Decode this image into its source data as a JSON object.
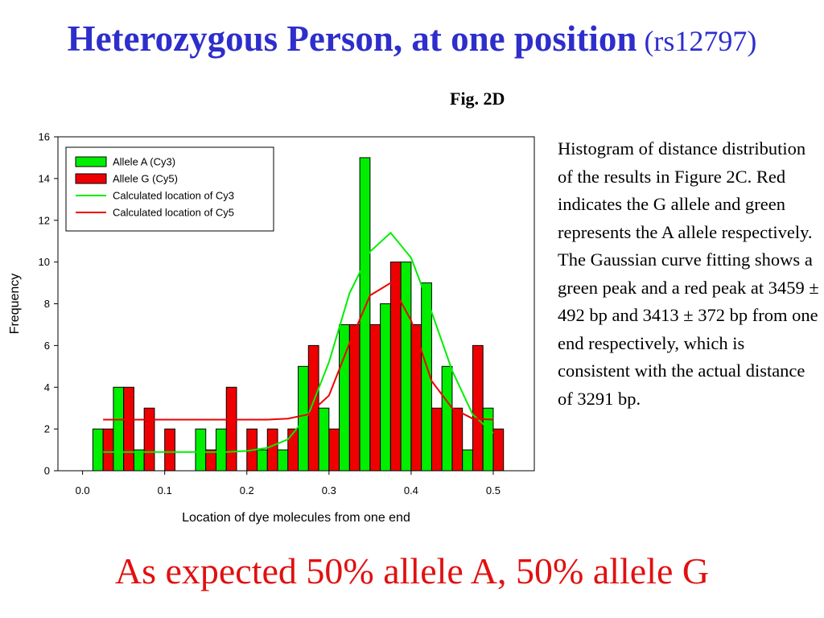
{
  "title": {
    "main": "Heterozygous Person, at one position",
    "sub": " (rs12797)"
  },
  "figure_label": "Fig. 2D",
  "caption": "Histogram of distance distribution of the results in Figure 2C. Red indicates the G allele and green represents the A allele respectively.  The Gaussian curve fitting shows a green peak and a red peak at 3459 ± 492 bp and 3413 ± 372 bp  from one end respectively, which is consistent with the actual distance of 3291 bp.",
  "bottom_text": "As expected 50% allele A, 50% allele G",
  "chart_data": {
    "type": "bar",
    "xlabel": "Location of dye molecules from one end",
    "ylabel": "Frequency",
    "xlim": [
      -0.03,
      0.55
    ],
    "ylim": [
      0,
      16
    ],
    "xticks": [
      0.0,
      0.1,
      0.2,
      0.3,
      0.4,
      0.5
    ],
    "xtick_labels": [
      "0.0",
      "0.1",
      "0.2",
      "0.3",
      "0.4",
      "0.5"
    ],
    "yticks": [
      0,
      2,
      4,
      6,
      8,
      10,
      12,
      14,
      16
    ],
    "legend_position": "top-left",
    "bin_centers": [
      0.025,
      0.05,
      0.075,
      0.1,
      0.125,
      0.15,
      0.175,
      0.2,
      0.225,
      0.25,
      0.275,
      0.3,
      0.325,
      0.35,
      0.375,
      0.4,
      0.425,
      0.45,
      0.475,
      0.5
    ],
    "series": [
      {
        "name": "Allele A (Cy3)",
        "kind": "bar",
        "color": "#00ee00",
        "values": [
          2,
          4,
          1,
          0,
          0,
          2,
          2,
          0,
          1,
          1,
          5,
          3,
          7,
          15,
          8,
          10,
          9,
          5,
          1,
          3
        ]
      },
      {
        "name": "Allele G (Cy5)",
        "kind": "bar",
        "color": "#ee0000",
        "values": [
          2,
          4,
          3,
          2,
          0,
          1,
          4,
          2,
          2,
          2,
          6,
          2,
          7,
          7,
          10,
          7,
          3,
          3,
          6,
          2
        ]
      },
      {
        "name": "Calculated location of Cy3",
        "kind": "line",
        "color": "#00ee00",
        "x": [
          0.025,
          0.05,
          0.075,
          0.1,
          0.125,
          0.15,
          0.175,
          0.2,
          0.225,
          0.25,
          0.275,
          0.3,
          0.325,
          0.35,
          0.375,
          0.4,
          0.425,
          0.45,
          0.475,
          0.5
        ],
        "y": [
          0.9,
          0.9,
          0.9,
          0.9,
          0.9,
          0.9,
          0.9,
          0.95,
          1.1,
          1.5,
          2.7,
          5.2,
          8.5,
          10.5,
          11.4,
          10.2,
          7.6,
          4.8,
          2.7,
          1.8
        ]
      },
      {
        "name": "Calculated location of Cy5",
        "kind": "line",
        "color": "#ee0000",
        "x": [
          0.025,
          0.05,
          0.075,
          0.1,
          0.125,
          0.15,
          0.175,
          0.2,
          0.225,
          0.25,
          0.275,
          0.3,
          0.325,
          0.35,
          0.375,
          0.4,
          0.425,
          0.45,
          0.475,
          0.5
        ],
        "y": [
          2.45,
          2.45,
          2.45,
          2.45,
          2.45,
          2.45,
          2.45,
          2.45,
          2.45,
          2.5,
          2.7,
          3.6,
          6.1,
          8.4,
          9.0,
          7.2,
          4.3,
          3.0,
          2.5,
          2.45
        ]
      }
    ]
  }
}
